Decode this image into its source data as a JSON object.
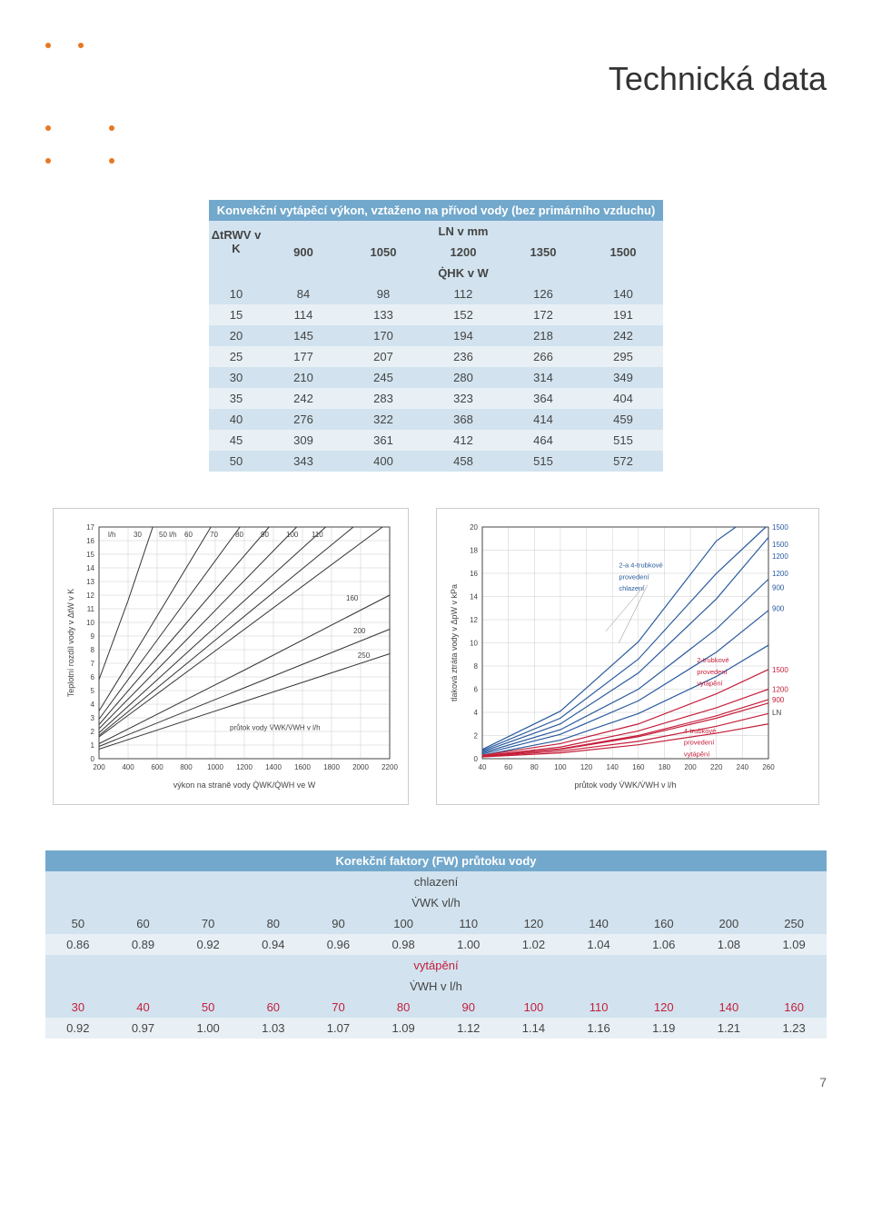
{
  "page_title": "Technická data",
  "page_number": "7",
  "table1": {
    "caption": "Konvekční vytápěcí výkon, vztaženo na přívod vody (bez primárního vzduchu)",
    "row_axis": "ΔtRWV v K",
    "col_axis": "LN v mm",
    "col_unit": "Q̇HK v W",
    "col_headers": [
      "900",
      "1050",
      "1200",
      "1350",
      "1500"
    ],
    "rows": [
      {
        "k": "10",
        "v": [
          "84",
          "98",
          "112",
          "126",
          "140"
        ]
      },
      {
        "k": "15",
        "v": [
          "114",
          "133",
          "152",
          "172",
          "191"
        ]
      },
      {
        "k": "20",
        "v": [
          "145",
          "170",
          "194",
          "218",
          "242"
        ]
      },
      {
        "k": "25",
        "v": [
          "177",
          "207",
          "236",
          "266",
          "295"
        ]
      },
      {
        "k": "30",
        "v": [
          "210",
          "245",
          "280",
          "314",
          "349"
        ]
      },
      {
        "k": "35",
        "v": [
          "242",
          "283",
          "323",
          "364",
          "404"
        ]
      },
      {
        "k": "40",
        "v": [
          "276",
          "322",
          "368",
          "414",
          "459"
        ]
      },
      {
        "k": "45",
        "v": [
          "309",
          "361",
          "412",
          "464",
          "515"
        ]
      },
      {
        "k": "50",
        "v": [
          "343",
          "400",
          "458",
          "515",
          "572"
        ]
      }
    ]
  },
  "chart1": {
    "type": "line",
    "ylabel": "Teplotní rozdíl vody v ΔtW v K",
    "xlabel": "výkon na straně vody Q̇WK/Q̇WH ve W",
    "flow_label": "průtok vody V̇WK/V̇WH v l/h",
    "x": {
      "min": 200,
      "max": 2200,
      "ticks": [
        200,
        400,
        600,
        800,
        1000,
        1200,
        1400,
        1600,
        1800,
        2000,
        2200
      ]
    },
    "y": {
      "min": 0,
      "max": 17,
      "ticks": [
        0,
        1,
        2,
        3,
        4,
        5,
        6,
        7,
        8,
        9,
        10,
        11,
        12,
        13,
        14,
        15,
        16,
        17
      ]
    },
    "diag_labels": [
      "l/h",
      "30",
      "50 l/h",
      "60",
      "70",
      "80",
      "90",
      "100",
      "110",
      "160",
      "200",
      "250"
    ],
    "lines": [
      {
        "lh": 30,
        "pts": [
          [
            200,
            5.8
          ],
          [
            400,
            11.6
          ],
          [
            570,
            17
          ]
        ]
      },
      {
        "lh": 50,
        "pts": [
          [
            200,
            3.5
          ],
          [
            500,
            8.7
          ],
          [
            970,
            17
          ]
        ]
      },
      {
        "lh": 60,
        "pts": [
          [
            200,
            2.9
          ],
          [
            600,
            8.7
          ],
          [
            1170,
            17
          ]
        ]
      },
      {
        "lh": 70,
        "pts": [
          [
            200,
            2.5
          ],
          [
            700,
            8.7
          ],
          [
            1370,
            17
          ]
        ]
      },
      {
        "lh": 80,
        "pts": [
          [
            200,
            2.2
          ],
          [
            800,
            8.7
          ],
          [
            1560,
            17
          ]
        ]
      },
      {
        "lh": 90,
        "pts": [
          [
            200,
            1.9
          ],
          [
            900,
            8.7
          ],
          [
            1760,
            17
          ]
        ]
      },
      {
        "lh": 100,
        "pts": [
          [
            200,
            1.7
          ],
          [
            1000,
            8.7
          ],
          [
            1950,
            17
          ]
        ]
      },
      {
        "lh": 110,
        "pts": [
          [
            200,
            1.6
          ],
          [
            1100,
            8.7
          ],
          [
            2150,
            17
          ]
        ]
      },
      {
        "lh": 160,
        "pts": [
          [
            200,
            1.1
          ],
          [
            1200,
            6.5
          ],
          [
            2200,
            12
          ]
        ]
      },
      {
        "lh": 200,
        "pts": [
          [
            200,
            0.9
          ],
          [
            1200,
            5.2
          ],
          [
            2200,
            9.5
          ]
        ]
      },
      {
        "lh": 250,
        "pts": [
          [
            200,
            0.7
          ],
          [
            1200,
            4.2
          ],
          [
            2200,
            7.7
          ]
        ]
      }
    ],
    "line_color": "#333",
    "grid_color": "#ccc"
  },
  "chart2": {
    "type": "line",
    "ylabel": "tlaková ztráta vody v ΔpW v kPa",
    "xlabel": "průtok vody V̇WK/V̇WH v l/h",
    "x": {
      "min": 40,
      "max": 260,
      "ticks": [
        40,
        60,
        80,
        100,
        120,
        140,
        160,
        180,
        200,
        220,
        240,
        260
      ]
    },
    "y": {
      "min": 0,
      "max": 20,
      "ticks": [
        0,
        2,
        4,
        6,
        8,
        10,
        12,
        14,
        16,
        18,
        20
      ]
    },
    "legend": [
      {
        "text": "2-a 4-trubkové provedení chlazení",
        "color": "#2a5b9e"
      },
      {
        "text": "2-trubkové provedení vytápění",
        "color": "#c41e3a"
      },
      {
        "text": "4-trubkové provedení vytápění",
        "color": "#c41e3a"
      }
    ],
    "right_labels": [
      "1500",
      "1500",
      "1200",
      "1200",
      "900",
      "900",
      "1500",
      "1200",
      "900",
      "LN"
    ],
    "blue_lines": [
      {
        "L": 1500,
        "pts": [
          [
            40,
            0.3
          ],
          [
            100,
            1.6
          ],
          [
            160,
            3.9
          ],
          [
            220,
            7.1
          ],
          [
            260,
            9.8
          ]
        ]
      },
      {
        "L": 1500,
        "pts": [
          [
            40,
            0.4
          ],
          [
            100,
            2.1
          ],
          [
            160,
            5.0
          ],
          [
            220,
            9.2
          ],
          [
            260,
            12.8
          ]
        ]
      },
      {
        "L": 1200,
        "pts": [
          [
            40,
            0.5
          ],
          [
            100,
            2.5
          ],
          [
            160,
            6.0
          ],
          [
            220,
            11.2
          ],
          [
            260,
            15.5
          ]
        ]
      },
      {
        "L": 1200,
        "pts": [
          [
            40,
            0.6
          ],
          [
            100,
            3.0
          ],
          [
            160,
            7.4
          ],
          [
            220,
            13.8
          ],
          [
            260,
            19.1
          ]
        ]
      },
      {
        "L": 900,
        "pts": [
          [
            40,
            0.7
          ],
          [
            100,
            3.5
          ],
          [
            160,
            8.6
          ],
          [
            220,
            16.0
          ],
          [
            258,
            20
          ]
        ]
      },
      {
        "L": 900,
        "pts": [
          [
            40,
            0.8
          ],
          [
            100,
            4.1
          ],
          [
            160,
            10.1
          ],
          [
            220,
            18.8
          ],
          [
            235,
            20
          ]
        ]
      }
    ],
    "red_lines": [
      {
        "L": 1500,
        "pts": [
          [
            40,
            0.2
          ],
          [
            100,
            0.8
          ],
          [
            160,
            1.9
          ],
          [
            220,
            3.5
          ],
          [
            260,
            4.8
          ]
        ]
      },
      {
        "L": 1200,
        "pts": [
          [
            40,
            0.25
          ],
          [
            100,
            1.0
          ],
          [
            160,
            2.4
          ],
          [
            220,
            4.4
          ],
          [
            260,
            6.0
          ]
        ]
      },
      {
        "L": 900,
        "pts": [
          [
            40,
            0.3
          ],
          [
            100,
            1.3
          ],
          [
            160,
            3.0
          ],
          [
            220,
            5.6
          ],
          [
            260,
            7.7
          ]
        ]
      },
      {
        "L": 1500,
        "pts": [
          [
            40,
            0.15
          ],
          [
            100,
            0.5
          ],
          [
            160,
            1.2
          ],
          [
            220,
            2.2
          ],
          [
            260,
            3.0
          ]
        ]
      },
      {
        "L": 1200,
        "pts": [
          [
            40,
            0.18
          ],
          [
            100,
            0.65
          ],
          [
            160,
            1.5
          ],
          [
            220,
            2.8
          ],
          [
            260,
            3.9
          ]
        ]
      },
      {
        "L": 900,
        "pts": [
          [
            40,
            0.22
          ],
          [
            100,
            0.85
          ],
          [
            160,
            2.0
          ],
          [
            220,
            3.7
          ],
          [
            260,
            5.1
          ]
        ]
      }
    ],
    "blue_color": "#2a5b9e",
    "red_color": "#c41e3a",
    "grid_color": "#ccc"
  },
  "table2": {
    "title": "Korekční faktory (FW) průtoku vody",
    "cooling": {
      "label": "chlazení",
      "unit": "V̇WK vl/h"
    },
    "heating": {
      "label": "vytápění",
      "unit": "V̇WH v l/h"
    },
    "cooling_flow": [
      "50",
      "60",
      "70",
      "80",
      "90",
      "100",
      "110",
      "120",
      "140",
      "160",
      "200",
      "250"
    ],
    "cooling_fac": [
      "0.86",
      "0.89",
      "0.92",
      "0.94",
      "0.96",
      "0.98",
      "1.00",
      "1.02",
      "1.04",
      "1.06",
      "1.08",
      "1.09"
    ],
    "heating_flow": [
      "30",
      "40",
      "50",
      "60",
      "70",
      "80",
      "90",
      "100",
      "110",
      "120",
      "140",
      "160"
    ],
    "heating_fac": [
      "0.92",
      "0.97",
      "1.00",
      "1.03",
      "1.07",
      "1.09",
      "1.12",
      "1.14",
      "1.16",
      "1.19",
      "1.21",
      "1.23"
    ]
  }
}
